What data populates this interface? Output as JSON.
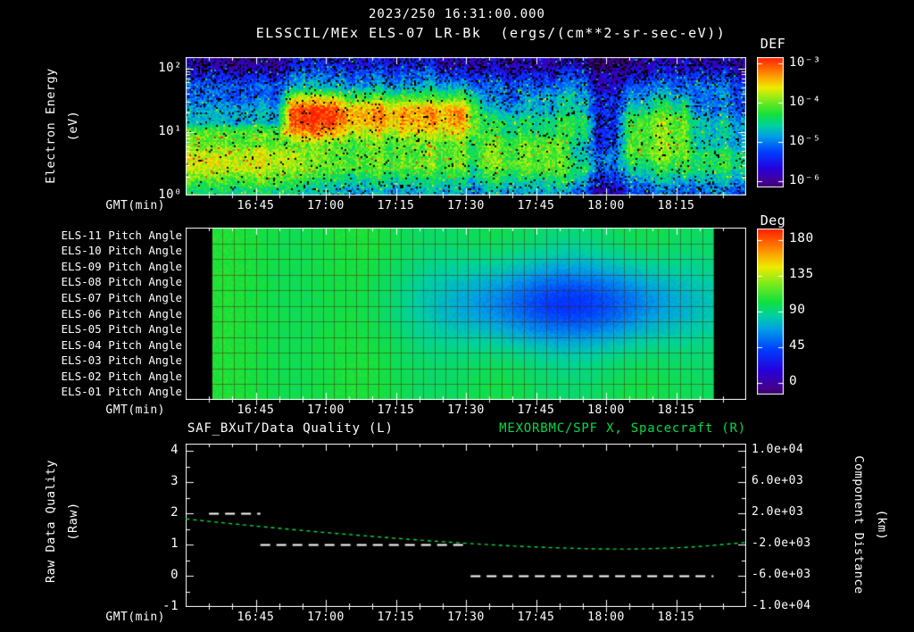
{
  "colors": {
    "background": "#000000",
    "text": "#FFFFFF",
    "series_green": "#00DC46",
    "rainbow_stops": [
      {
        "t": 0.0,
        "c": "#1E0032"
      },
      {
        "t": 0.08,
        "c": "#46008C"
      },
      {
        "t": 0.18,
        "c": "#2800DC"
      },
      {
        "t": 0.3,
        "c": "#003CFF"
      },
      {
        "t": 0.42,
        "c": "#00A0E6"
      },
      {
        "t": 0.5,
        "c": "#00D2A0"
      },
      {
        "t": 0.58,
        "c": "#14E13C"
      },
      {
        "t": 0.68,
        "c": "#78EB1E"
      },
      {
        "t": 0.78,
        "c": "#F0EB00"
      },
      {
        "t": 0.87,
        "c": "#FF9600"
      },
      {
        "t": 1.0,
        "c": "#FF1E00"
      }
    ]
  },
  "header": {
    "datetime": "2023/250 16:31:00.000",
    "subtitle": "ELSSCIL/MEx ELS-07 LR-Bk  (ergs/(cm**2-sr-sec-eV))"
  },
  "time_axis": {
    "label": "GMT(min)",
    "tick_labels": [
      "16:45",
      "17:00",
      "17:15",
      "17:30",
      "17:45",
      "18:00",
      "18:15"
    ],
    "tick_minutes": [
      15,
      30,
      45,
      60,
      75,
      90,
      105
    ],
    "minor_step_min": 5,
    "range_minutes": [
      0,
      120
    ],
    "start_time": "16:30",
    "end_time": "18:30"
  },
  "chart_data": [
    {
      "id": "electron-energy-spectrogram",
      "type": "heatmap",
      "title": "ELSSCIL/MEx ELS-07 LR-Bk",
      "units": "ergs/(cm**2-sr-sec-eV)",
      "ylabel": "Electron Energy",
      "ylabel_units": "(eV)",
      "y_scale": "log",
      "y_range_ev": [
        1,
        150
      ],
      "y_tick_labels": [
        "10²",
        "10¹",
        "10⁰"
      ],
      "y_tick_ev": [
        100,
        10,
        1
      ],
      "colorbar": {
        "label": "DEF",
        "tick_labels": [
          "10⁻³",
          "10⁻⁴",
          "10⁻⁵",
          "10⁻⁶"
        ],
        "log10_range": [
          -3,
          -6.5
        ]
      },
      "value_encoding": "digit d maps to log10(DEF) = -6.4 + 0.34*d",
      "grid_cols": 40,
      "grid_rows": 12,
      "rows_order": "top_to_bottom",
      "col_span_min": 3,
      "grid_rle": [
        [
          [
            7,
            1
          ],
          [
            11,
            2
          ],
          [
            11,
            1
          ],
          [
            2,
            0
          ],
          [
            9,
            1
          ]
        ],
        [
          [
            7,
            2
          ],
          [
            12,
            3
          ],
          [
            10,
            2
          ],
          [
            2,
            1
          ],
          [
            9,
            2
          ]
        ],
        [
          [
            7,
            3
          ],
          [
            13,
            4
          ],
          [
            9,
            3
          ],
          [
            2,
            1
          ],
          [
            9,
            3
          ]
        ],
        [
          [
            7,
            3
          ],
          [
            4,
            7
          ],
          [
            9,
            6
          ],
          [
            1,
            5
          ],
          [
            3,
            3
          ],
          [
            5,
            4
          ],
          [
            2,
            2
          ],
          [
            5,
            4
          ],
          [
            4,
            3
          ]
        ],
        [
          [
            7,
            4
          ],
          [
            4,
            9
          ],
          [
            9,
            8
          ],
          [
            1,
            6
          ],
          [
            3,
            4
          ],
          [
            5,
            4
          ],
          [
            2,
            2
          ],
          [
            5,
            5
          ],
          [
            4,
            3
          ]
        ],
        [
          [
            7,
            4
          ],
          [
            4,
            9
          ],
          [
            9,
            8
          ],
          [
            1,
            6
          ],
          [
            3,
            5
          ],
          [
            5,
            5
          ],
          [
            2,
            2
          ],
          [
            5,
            6
          ],
          [
            4,
            4
          ]
        ],
        [
          [
            7,
            6
          ],
          [
            4,
            8
          ],
          [
            9,
            7
          ],
          [
            1,
            6
          ],
          [
            3,
            5
          ],
          [
            5,
            5
          ],
          [
            2,
            2
          ],
          [
            5,
            6
          ],
          [
            4,
            4
          ]
        ],
        [
          [
            20,
            6
          ],
          [
            1,
            5
          ],
          [
            6,
            6
          ],
          [
            2,
            4
          ],
          [
            2,
            2
          ],
          [
            5,
            6
          ],
          [
            4,
            4
          ]
        ],
        [
          [
            8,
            7
          ],
          [
            12,
            6
          ],
          [
            1,
            5
          ],
          [
            6,
            6
          ],
          [
            2,
            4
          ],
          [
            2,
            3
          ],
          [
            5,
            6
          ],
          [
            4,
            5
          ]
        ],
        [
          [
            8,
            7
          ],
          [
            12,
            6
          ],
          [
            1,
            5
          ],
          [
            6,
            6
          ],
          [
            2,
            5
          ],
          [
            2,
            3
          ],
          [
            5,
            5
          ],
          [
            4,
            5
          ]
        ],
        [
          [
            8,
            6
          ],
          [
            12,
            5
          ],
          [
            1,
            4
          ],
          [
            6,
            5
          ],
          [
            2,
            4
          ],
          [
            2,
            2
          ],
          [
            5,
            4
          ],
          [
            4,
            4
          ]
        ],
        [
          [
            8,
            5
          ],
          [
            12,
            4
          ],
          [
            1,
            3
          ],
          [
            6,
            4
          ],
          [
            2,
            3
          ],
          [
            2,
            1
          ],
          [
            5,
            3
          ],
          [
            4,
            3
          ]
        ]
      ]
    },
    {
      "id": "pitch-angle-panels",
      "type": "heatmap",
      "row_labels": [
        "ELS-11 Pitch Angle",
        "ELS-10 Pitch Angle",
        "ELS-09 Pitch Angle",
        "ELS-08 Pitch Angle",
        "ELS-07 Pitch Angle",
        "ELS-06 Pitch Angle",
        "ELS-05 Pitch Angle",
        "ELS-04 Pitch Angle",
        "ELS-03 Pitch Angle",
        "ELS-02 Pitch Angle",
        "ELS-01 Pitch Angle"
      ],
      "colorbar": {
        "label": "Deg",
        "tick_labels": [
          "180",
          "135",
          "90",
          "45",
          "0"
        ],
        "tick_values": [
          180,
          135,
          90,
          45,
          0
        ],
        "range_deg": [
          0,
          180
        ]
      },
      "field": {
        "base_deg": 102,
        "noise_deg": 3,
        "blob": {
          "center_min": 82,
          "center_row_frac": 0.44,
          "sigma_min": 19,
          "sigma_row_frac": 0.17,
          "depth_deg": 46
        },
        "data_start_min": 5.5,
        "data_end_min": 113
      },
      "grid_overlay": {
        "cols": 45,
        "rows": 11
      }
    },
    {
      "id": "quality-and-distance",
      "type": "line",
      "left_title": "SAF_BXuT/Data Quality (L)",
      "right_title": "MEXORBMC/SPF X, Spacecraft (R)",
      "left_axis": {
        "label": "Raw Data Quality",
        "units": "(Raw)",
        "tick_labels": [
          "4",
          "3",
          "2",
          "1",
          "0",
          "-1"
        ],
        "tick_values": [
          4,
          3,
          2,
          1,
          0,
          -1
        ],
        "range": [
          -1,
          4
        ]
      },
      "right_axis": {
        "label": "Component Distance",
        "units": "(km)",
        "tick_labels": [
          "1.0e+04",
          "6.0e+03",
          "2.0e+03",
          "-2.0e+03",
          "-6.0e+03",
          "-1.0e+04"
        ],
        "tick_values": [
          10000,
          6000,
          2000,
          -2000,
          -6000,
          -10000
        ],
        "range": [
          -10000,
          10000
        ]
      },
      "series": [
        {
          "name": "SAF_BXuT/Data Quality",
          "axis": "left",
          "style": "dashed",
          "color": "#FFFFFF",
          "segments": [
            {
              "value": 2,
              "start_min": 5,
              "end_min": 16
            },
            {
              "value": 1,
              "start_min": 16,
              "end_min": 60
            },
            {
              "value": 0,
              "start_min": 61,
              "end_min": 113
            }
          ]
        },
        {
          "name": "MEXORBMC/SPF X Spacecraft",
          "axis": "right",
          "style": "dashed",
          "color": "#00DC46",
          "x_min": [
            0,
            10,
            20,
            30,
            40,
            50,
            60,
            70,
            80,
            90,
            100,
            110,
            120
          ],
          "km": [
            1280,
            640,
            80,
            -480,
            -960,
            -1440,
            -1840,
            -2200,
            -2440,
            -2600,
            -2560,
            -2280,
            -1720
          ]
        }
      ]
    }
  ]
}
